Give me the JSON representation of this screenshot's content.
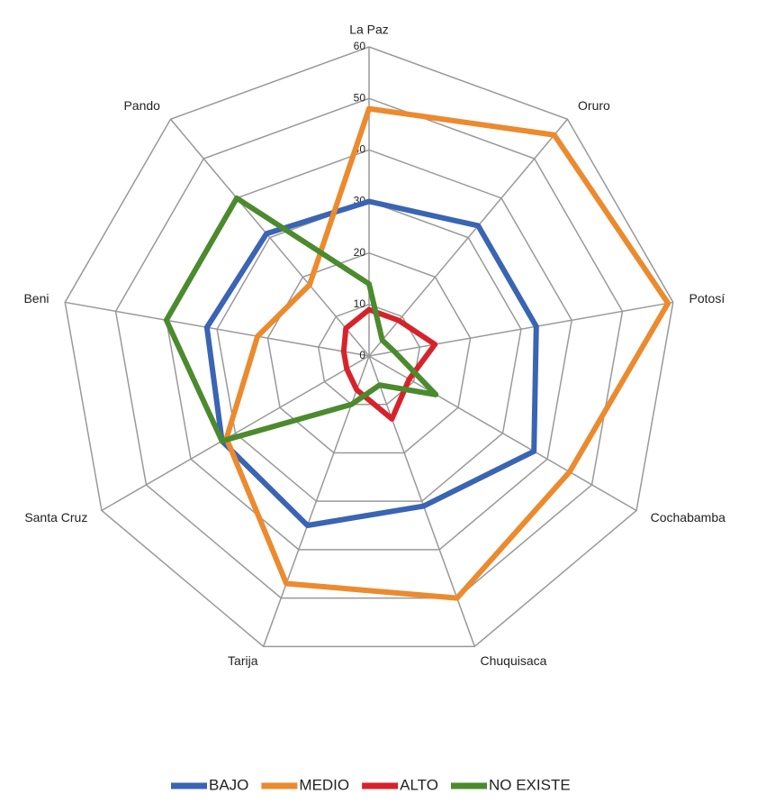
{
  "chart_data": {
    "type": "radar",
    "categories": [
      "La Paz",
      "Oruro",
      "Potosí",
      "Cochabamba",
      "Chuquisaca",
      "Tarija",
      "Santa Cruz",
      "Beni",
      "Pando"
    ],
    "series": [
      {
        "name": "BAJO",
        "color": "#3a64b4",
        "values": [
          30,
          33,
          33,
          37,
          31,
          35,
          33,
          32,
          31
        ]
      },
      {
        "name": "MEDIO",
        "color": "#ec8a2e",
        "values": [
          48,
          56,
          59,
          45,
          50,
          47,
          32,
          22,
          18
        ]
      },
      {
        "name": "ALTO",
        "color": "#d8222a",
        "values": [
          9,
          9,
          13,
          9,
          13,
          7,
          5,
          5,
          7
        ]
      },
      {
        "name": "NO EXISTE",
        "color": "#4c8a2e",
        "values": [
          14,
          4,
          5,
          15,
          6,
          10,
          33,
          40,
          40
        ]
      }
    ],
    "ylim": [
      0,
      60
    ],
    "yticks": [
      0,
      10,
      20,
      30,
      40,
      50,
      60
    ],
    "grid": true,
    "legend": "bottom"
  }
}
